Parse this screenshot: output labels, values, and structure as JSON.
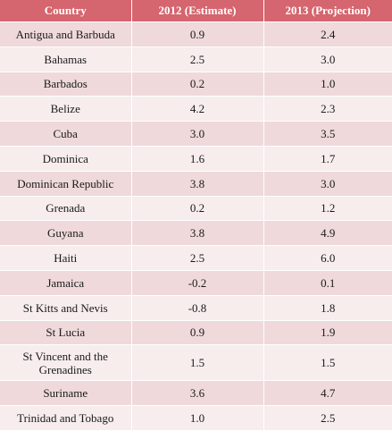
{
  "table": {
    "headers": [
      "Country",
      "2012 (Estimate)",
      "2013 (Projection)"
    ],
    "rows": [
      {
        "country": "Antigua and Barbuda",
        "y2012": "0.9",
        "y2013": "2.4"
      },
      {
        "country": "Bahamas",
        "y2012": "2.5",
        "y2013": "3.0"
      },
      {
        "country": "Barbados",
        "y2012": "0.2",
        "y2013": "1.0"
      },
      {
        "country": "Belize",
        "y2012": "4.2",
        "y2013": "2.3"
      },
      {
        "country": "Cuba",
        "y2012": "3.0",
        "y2013": "3.5"
      },
      {
        "country": "Dominica",
        "y2012": "1.6",
        "y2013": "1.7"
      },
      {
        "country": "Dominican Republic",
        "y2012": "3.8",
        "y2013": "3.0"
      },
      {
        "country": "Grenada",
        "y2012": "0.2",
        "y2013": "1.2"
      },
      {
        "country": "Guyana",
        "y2012": "3.8",
        "y2013": "4.9"
      },
      {
        "country": "Haiti",
        "y2012": "2.5",
        "y2013": "6.0"
      },
      {
        "country": "Jamaica",
        "y2012": "-0.2",
        "y2013": "0.1"
      },
      {
        "country": "St Kitts and Nevis",
        "y2012": "-0.8",
        "y2013": "1.8"
      },
      {
        "country": "St Lucia",
        "y2012": "0.9",
        "y2013": "1.9"
      },
      {
        "country": "St Vincent and the Grenadines",
        "y2012": "1.5",
        "y2013": "1.5"
      },
      {
        "country": "Suriname",
        "y2012": "3.6",
        "y2013": "4.7"
      },
      {
        "country": "Trinidad and Tobago",
        "y2012": "1.0",
        "y2013": "2.5"
      }
    ]
  },
  "colors": {
    "header_bg": "#d5656e",
    "header_text": "#ffffff",
    "row_odd_bg": "#efd9da",
    "row_even_bg": "#f7eded"
  }
}
